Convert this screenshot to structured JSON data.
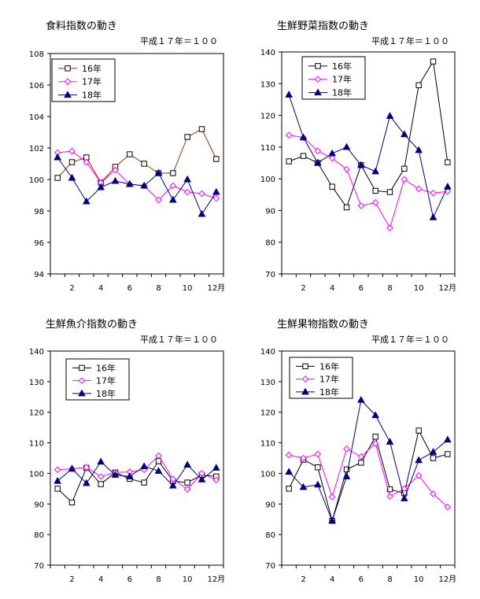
{
  "chart_data": [
    {
      "type": "line",
      "title": "食料指数の動き",
      "subtitle": "平成１７年＝１００",
      "ylim": [
        94,
        108
      ],
      "yticks": [
        94,
        96,
        98,
        100,
        102,
        104,
        106,
        108
      ],
      "xticks": [
        2,
        4,
        6,
        8,
        10,
        12
      ],
      "xtick_labels": [
        "2",
        "4",
        "6",
        "8",
        "10",
        "12月"
      ],
      "x": [
        1,
        2,
        3,
        4,
        5,
        6,
        7,
        8,
        9,
        10,
        11,
        12
      ],
      "grid": false,
      "legend_position": "top-left",
      "series": [
        {
          "name": "16年",
          "marker": "square",
          "color": "#000000",
          "line_color": "#993300",
          "values": [
            100.1,
            101.1,
            101.4,
            99.8,
            100.8,
            101.6,
            101.0,
            100.4,
            100.4,
            102.7,
            103.2,
            101.3
          ]
        },
        {
          "name": "17年",
          "marker": "diamond",
          "color": "#ff00ff",
          "line_color": "#ff00ff",
          "values": [
            101.7,
            101.8,
            101.1,
            99.8,
            100.6,
            99.7,
            99.6,
            98.7,
            99.6,
            99.2,
            99.1,
            98.8
          ]
        },
        {
          "name": "18年",
          "marker": "triangle",
          "color": "#000080",
          "line_color": "#000080",
          "values": [
            101.4,
            100.1,
            98.6,
            99.5,
            99.9,
            99.7,
            99.6,
            100.4,
            98.7,
            100.0,
            97.8,
            99.2
          ]
        }
      ]
    },
    {
      "type": "line",
      "title": "生鮮野菜指数の動き",
      "subtitle": "平成１７年＝１００",
      "ylim": [
        70,
        140
      ],
      "yticks": [
        70,
        80,
        90,
        100,
        110,
        120,
        130,
        140
      ],
      "xticks": [
        2,
        4,
        6,
        8,
        10,
        12
      ],
      "xtick_labels": [
        "2",
        "4",
        "6",
        "8",
        "10",
        "12月"
      ],
      "x": [
        1,
        2,
        3,
        4,
        5,
        6,
        7,
        8,
        9,
        10,
        11,
        12
      ],
      "grid": false,
      "legend_position": "top-left",
      "series": [
        {
          "name": "16年",
          "marker": "square",
          "color": "#000000",
          "line_color": "#000000",
          "values": [
            105.5,
            107.2,
            105.0,
            97.5,
            91.0,
            104.3,
            96.2,
            95.8,
            103.2,
            129.5,
            137.0,
            105.2
          ]
        },
        {
          "name": "17年",
          "marker": "diamond",
          "color": "#ff00ff",
          "line_color": "#ff00ff",
          "values": [
            113.8,
            113.0,
            108.8,
            106.5,
            103.0,
            91.5,
            92.5,
            84.5,
            99.8,
            96.8,
            95.5,
            96.0
          ]
        },
        {
          "name": "18年",
          "marker": "triangle",
          "color": "#000080",
          "line_color": "#000080",
          "values": [
            126.5,
            113.0,
            105.0,
            108.0,
            110.0,
            104.3,
            102.3,
            119.8,
            114.0,
            109.0,
            87.8,
            97.5
          ]
        }
      ]
    },
    {
      "type": "line",
      "title": "生鮮魚介指数の動き",
      "subtitle": "平成１７年＝１００",
      "ylim": [
        70,
        140
      ],
      "yticks": [
        70,
        80,
        90,
        100,
        110,
        120,
        130,
        140
      ],
      "xticks": [
        2,
        4,
        6,
        8,
        10,
        12
      ],
      "xtick_labels": [
        "2",
        "4",
        "6",
        "8",
        "10",
        "12月"
      ],
      "x": [
        1,
        2,
        3,
        4,
        5,
        6,
        7,
        8,
        9,
        10,
        11,
        12
      ],
      "grid": false,
      "legend_position": "top-left",
      "series": [
        {
          "name": "16年",
          "marker": "square",
          "color": "#000000",
          "line_color": "#000000",
          "values": [
            95.0,
            90.5,
            101.8,
            96.5,
            100.3,
            98.2,
            97.0,
            104.0,
            97.5,
            97.0,
            99.5,
            99.0
          ]
        },
        {
          "name": "17年",
          "marker": "diamond",
          "color": "#ff00ff",
          "line_color": "#ff00ff",
          "values": [
            101.2,
            101.5,
            102.0,
            99.0,
            100.3,
            100.5,
            101.2,
            105.8,
            98.2,
            94.8,
            100.0,
            97.8
          ]
        },
        {
          "name": "18年",
          "marker": "triangle",
          "color": "#000080",
          "line_color": "#000080",
          "values": [
            97.5,
            101.5,
            96.8,
            103.8,
            99.5,
            99.0,
            102.3,
            100.8,
            96.0,
            102.8,
            98.0,
            101.8
          ]
        }
      ]
    },
    {
      "type": "line",
      "title": "生鮮果物指数の動き",
      "subtitle": "平成１７年＝１００",
      "ylim": [
        70,
        140
      ],
      "yticks": [
        70,
        80,
        90,
        100,
        110,
        120,
        130,
        140
      ],
      "xticks": [
        2,
        4,
        6,
        8,
        10,
        12
      ],
      "xtick_labels": [
        "2",
        "4",
        "6",
        "8",
        "10",
        "12月"
      ],
      "x": [
        1,
        2,
        3,
        4,
        5,
        6,
        7,
        8,
        9,
        10,
        11,
        12
      ],
      "grid": false,
      "legend_position": "top-left",
      "series": [
        {
          "name": "16年",
          "marker": "square",
          "color": "#000000",
          "line_color": "#000000",
          "values": [
            95.0,
            104.5,
            102.0,
            84.5,
            101.3,
            103.5,
            112.0,
            94.8,
            93.5,
            114.0,
            105.0,
            106.3
          ]
        },
        {
          "name": "17年",
          "marker": "diamond",
          "color": "#ff00ff",
          "line_color": "#ff00ff",
          "values": [
            106.0,
            105.0,
            106.3,
            92.3,
            108.0,
            105.5,
            109.8,
            92.5,
            95.0,
            99.3,
            93.3,
            89.0
          ]
        },
        {
          "name": "18年",
          "marker": "triangle",
          "color": "#000080",
          "line_color": "#000080",
          "values": [
            100.5,
            95.5,
            96.3,
            84.5,
            99.0,
            124.0,
            119.0,
            110.3,
            91.8,
            104.3,
            107.0,
            111.0
          ]
        }
      ]
    }
  ]
}
